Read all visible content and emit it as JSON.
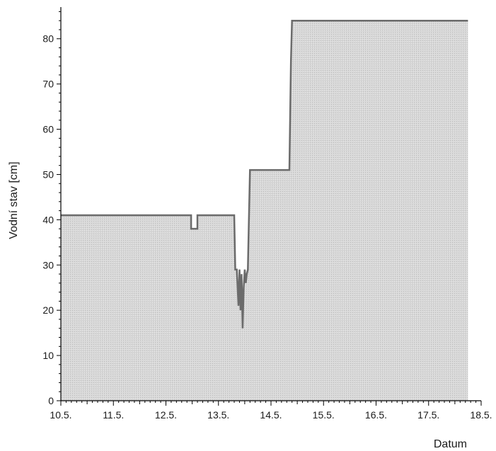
{
  "chart_data": {
    "type": "area",
    "xlabel": "Datum",
    "ylabel": "Vodní stav [cm]",
    "xlim": [
      10.5,
      18.5
    ],
    "ylim": [
      0,
      87
    ],
    "x_ticks": [
      10.5,
      11.5,
      12.5,
      13.5,
      14.5,
      15.5,
      16.5,
      17.5,
      18.5
    ],
    "x_tick_labels": [
      "10.5.",
      "11.5.",
      "12.5.",
      "13.5.",
      "14.5.",
      "15.5.",
      "16.5.",
      "17.5.",
      "18.5."
    ],
    "y_ticks": [
      0,
      10,
      20,
      30,
      40,
      50,
      60,
      70,
      80
    ],
    "y_tick_labels": [
      "0",
      "10",
      "20",
      "30",
      "40",
      "50",
      "60",
      "70",
      "80"
    ],
    "grid": false,
    "colors": {
      "fill": "#d4d4d4",
      "line": "#6b6b6b",
      "axis": "#000000"
    },
    "series": [
      {
        "x": [
          10.5,
          12.98,
          12.98,
          13.1,
          13.1,
          13.8,
          13.82,
          13.85,
          13.88,
          13.9,
          13.92,
          13.94,
          13.96,
          13.98,
          14.0,
          14.02,
          14.04,
          14.06,
          14.08,
          14.1,
          14.12,
          14.85,
          14.88,
          14.9,
          18.25
        ],
        "y": [
          41,
          41,
          38,
          38,
          41,
          41,
          29,
          29,
          21,
          29,
          20,
          28,
          16,
          25,
          29,
          26,
          28,
          29,
          40,
          51,
          51,
          51,
          75,
          84,
          84
        ]
      }
    ]
  }
}
